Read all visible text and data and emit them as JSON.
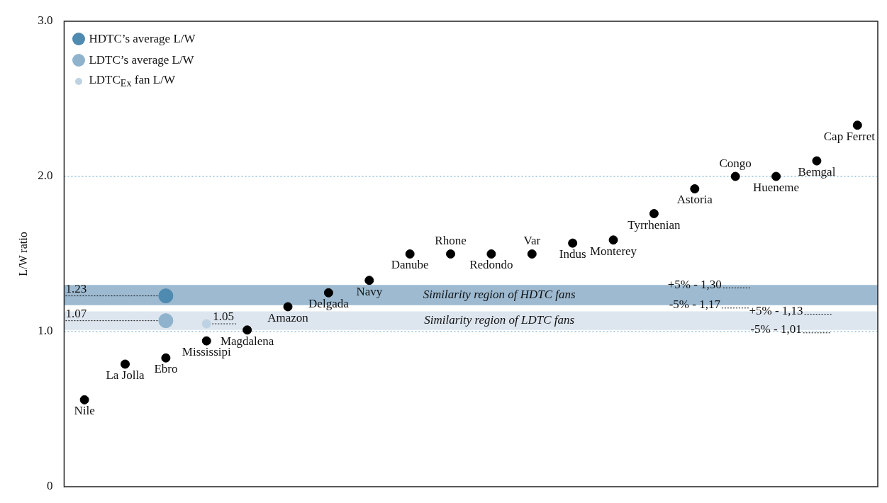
{
  "chart_data": {
    "type": "scatter",
    "ylabel": "L/W ratio",
    "legend": "top left",
    "marker": "circle",
    "tick_labels": "y",
    "categories": [
      "Nile",
      "La Jolla",
      "Ebro",
      "Mississipi",
      "Magdalena",
      "Amazon",
      "Delgada",
      "Navy",
      "Danube",
      "Rhone",
      "Redondo",
      "Var",
      "Indus",
      "Monterey",
      "Tyrrhenian",
      "Astoria",
      "Congo",
      "Hueneme",
      "Bemgal",
      "Cap Ferret"
    ],
    "ylim": [
      0,
      3
    ],
    "yticks": [
      0,
      {
        "value": 1,
        "label": "1.0"
      },
      {
        "value": 2,
        "label": "2.0"
      },
      {
        "value": 3,
        "label": "3.0"
      }
    ],
    "series": [
      {
        "color": "#000000",
        "values": [
          0.56,
          0.79,
          0.83,
          0.94,
          1.01,
          1.16,
          1.25,
          1.33,
          1.5,
          1.5,
          1.5,
          1.5,
          1.57,
          1.59,
          1.76,
          1.92,
          2.0,
          2.0,
          2.1,
          2.33
        ]
      },
      {
        "name": "HDTC’s average L/W",
        "color": "#4f8ab0",
        "x": [
          "Ebro"
        ],
        "values": [
          1.23
        ],
        "value_labels": [
          "1.23"
        ]
      },
      {
        "name": "LDTC’s average L/W",
        "color": "#8fb3cd",
        "x": [
          "Ebro"
        ],
        "values": [
          1.07
        ],
        "value_labels": [
          "1.07"
        ]
      },
      {
        "name": "LDTC$_{Ex}$ fan L/W",
        "color": "#bdd2e2",
        "x": [
          "Mississipi"
        ],
        "values": [
          1.05
        ],
        "value_labels": [
          "1.05"
        ]
      }
    ],
    "bands": [
      {
        "axis": "y",
        "from": 1.17,
        "to": 1.3,
        "label": "Similarity region of HDTC fans",
        "color": "#9dbad1"
      },
      {
        "axis": "y",
        "from": 1.01,
        "to": 1.13,
        "label": "Similarity region of LDTC fans",
        "color": "#dde5ee"
      }
    ],
    "ref_lines": [
      {
        "axis": "y",
        "value": 2,
        "color": "#5a9fcc",
        "line_style": "dotted"
      },
      {
        "axis": "y",
        "value": 1,
        "color": "#5a9fcc",
        "line_style": "dotted"
      }
    ],
    "annotations": [
      {
        "text": "+5% - 1,30",
        "x": "Astoria",
        "y": 1.3
      },
      {
        "text": "-5% - 1,17",
        "x": "Astoria",
        "y": 1.17
      },
      {
        "text": "+5% - 1,13",
        "x": "Hueneme",
        "y": 1.13
      },
      {
        "text": "-5% - 1,01",
        "x": "Hueneme",
        "y": 1.01
      }
    ]
  }
}
